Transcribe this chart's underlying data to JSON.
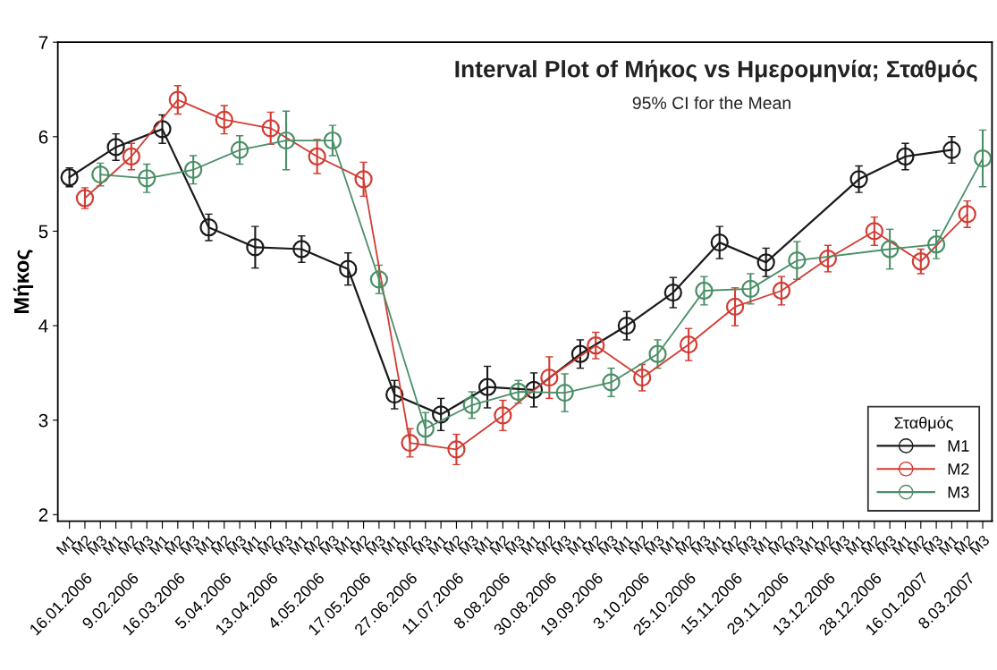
{
  "chart_data": {
    "type": "line",
    "title": "Interval Plot of Μήκος vs Ημερομηνία; Σταθμός",
    "subtitle": "95% CI for the Mean",
    "ylabel": "Μήκος",
    "legend_title": "Σταθμός",
    "categories": [
      "16.01.2006",
      "9.02.2006",
      "16.03.2006",
      "5.04.2006",
      "13.04.2006",
      "4.05.2006",
      "17.05.2006",
      "27.06.2006",
      "11.07.2006",
      "8.08.2006",
      "30.08.2006",
      "19.09.2006",
      "3.10.2006",
      "25.10.2006",
      "15.11.2006",
      "29.11.2006",
      "13.12.2006",
      "28.12.2006",
      "16.01.2007",
      "8.03.2007"
    ],
    "series": [
      {
        "name": "M1",
        "color": "#1a1a1a",
        "values": [
          5.57,
          5.89,
          6.08,
          5.04,
          4.83,
          4.81,
          4.6,
          3.27,
          3.06,
          3.35,
          3.32,
          3.7,
          4.0,
          4.35,
          4.88,
          4.67,
          null,
          5.55,
          5.79,
          5.86
        ],
        "errors": [
          0.1,
          0.14,
          0.15,
          0.14,
          0.22,
          0.14,
          0.17,
          0.15,
          0.17,
          0.22,
          0.18,
          0.15,
          0.15,
          0.16,
          0.17,
          0.15,
          null,
          0.14,
          0.14,
          0.14
        ]
      },
      {
        "name": "M2",
        "color": "#d23c32",
        "values": [
          5.35,
          5.79,
          6.39,
          6.18,
          6.09,
          5.79,
          5.55,
          2.76,
          2.69,
          3.05,
          3.45,
          3.79,
          3.45,
          3.8,
          4.2,
          4.37,
          4.71,
          5.0,
          4.68,
          5.18
        ],
        "errors": [
          0.11,
          0.14,
          0.15,
          0.15,
          0.17,
          0.18,
          0.18,
          0.15,
          0.16,
          0.16,
          0.22,
          0.14,
          0.14,
          0.17,
          0.2,
          0.15,
          0.14,
          0.15,
          0.13,
          0.14
        ]
      },
      {
        "name": "M3",
        "color": "#4a8f66",
        "values": [
          5.6,
          5.56,
          5.65,
          5.86,
          5.96,
          5.96,
          4.49,
          2.91,
          3.16,
          3.3,
          3.29,
          3.4,
          3.7,
          4.37,
          4.39,
          4.69,
          null,
          4.81,
          4.86,
          5.77
        ],
        "errors": [
          0.12,
          0.15,
          0.15,
          0.15,
          0.31,
          0.16,
          0.15,
          0.17,
          0.14,
          0.12,
          0.2,
          0.15,
          0.15,
          0.15,
          0.16,
          0.2,
          null,
          0.21,
          0.15,
          0.3
        ]
      }
    ],
    "ylim": [
      1.93,
      7.0
    ],
    "yticks": [
      2,
      3,
      4,
      5,
      6,
      7
    ],
    "grid": false,
    "legend": "bottom right",
    "marker": "circle",
    "line_style": "solid"
  }
}
